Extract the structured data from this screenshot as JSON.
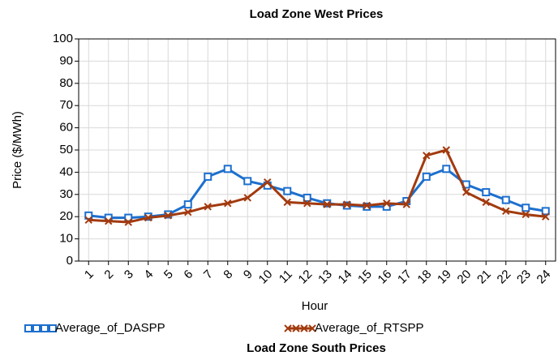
{
  "chart_data": [
    {
      "type": "line",
      "title": "Load Zone West Prices",
      "x_label": "Hour",
      "y_label": "Price ($/MWh)",
      "categories": [
        "1",
        "2",
        "3",
        "4",
        "5",
        "6",
        "7",
        "8",
        "9",
        "10",
        "11",
        "12",
        "13",
        "14",
        "15",
        "16",
        "17",
        "18",
        "19",
        "20",
        "21",
        "22",
        "23",
        "24"
      ],
      "series": [
        {
          "name": "Average_of_DASPP",
          "color": "#1c6fce",
          "marker": "square",
          "values": [
            20.5,
            19.5,
            19.5,
            20,
            21,
            25.5,
            38,
            41.5,
            36,
            34,
            31.5,
            28.5,
            26,
            25,
            24.5,
            24.5,
            27,
            38,
            41.5,
            34.5,
            31,
            27.5,
            24,
            22.5
          ]
        },
        {
          "name": "Average_of_RTSPP",
          "color": "#a23a0e",
          "marker": "x",
          "values": [
            18.5,
            18,
            17.5,
            19.5,
            20.5,
            22,
            24.5,
            26,
            28.5,
            35.5,
            26.5,
            26,
            25.5,
            25.5,
            25,
            26,
            25.5,
            47.5,
            50,
            31,
            26.5,
            22.5,
            21,
            20
          ]
        }
      ],
      "ylim": [
        0,
        100
      ],
      "yticks": [
        0,
        10,
        20,
        30,
        40,
        50,
        60,
        70,
        80,
        90,
        100
      ],
      "grid": true,
      "legend": "bottom"
    },
    {
      "title": "Load Zone South Prices"
    }
  ]
}
